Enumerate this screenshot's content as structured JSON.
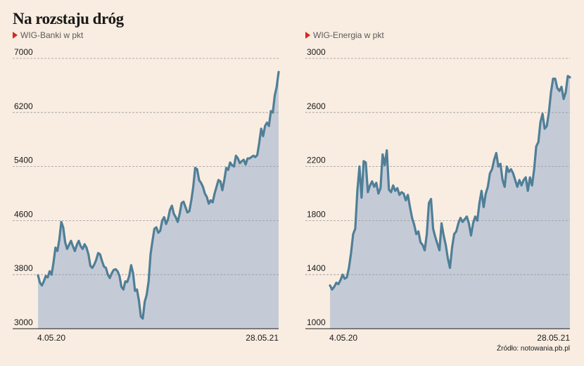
{
  "title": "Na rozstaju dróg",
  "source": "Źródło: notowania.pb.pl",
  "colors": {
    "line": "#4f7f98",
    "fill": "#c5cbd6",
    "grid": "#9a9a9a",
    "marker": "#d9261c"
  },
  "chart_data": [
    {
      "type": "area",
      "series_label": "WIG-Banki w pkt",
      "ylim": [
        3000,
        7000
      ],
      "yticks": [
        3000,
        3800,
        4600,
        5400,
        6200,
        7000
      ],
      "ytick_labels": [
        "3000",
        "3800",
        "4600",
        "5400",
        "6200",
        "7000"
      ],
      "xtick_labels": [
        "4.05.20",
        "28.05.21"
      ],
      "grid": true,
      "values": [
        3790,
        3680,
        3640,
        3700,
        3780,
        3760,
        3850,
        3800,
        3980,
        4200,
        4150,
        4320,
        4580,
        4500,
        4280,
        4180,
        4240,
        4300,
        4220,
        4150,
        4240,
        4300,
        4220,
        4180,
        4250,
        4200,
        4100,
        3930,
        3900,
        3950,
        4020,
        4120,
        4100,
        4000,
        3920,
        3900,
        3800,
        3750,
        3820,
        3870,
        3880,
        3850,
        3780,
        3620,
        3580,
        3700,
        3690,
        3780,
        3940,
        3820,
        3560,
        3580,
        3420,
        3180,
        3150,
        3400,
        3500,
        3700,
        4100,
        4300,
        4480,
        4500,
        4420,
        4450,
        4600,
        4650,
        4550,
        4620,
        4760,
        4820,
        4700,
        4650,
        4580,
        4700,
        4860,
        4880,
        4800,
        4720,
        4740,
        4900,
        5100,
        5380,
        5360,
        5200,
        5160,
        5100,
        5000,
        4950,
        4850,
        4900,
        4870,
        5000,
        5100,
        5200,
        5180,
        5050,
        5200,
        5380,
        5350,
        5460,
        5420,
        5400,
        5560,
        5520,
        5450,
        5480,
        5500,
        5430,
        5520,
        5520,
        5540,
        5560,
        5540,
        5570,
        5750,
        5960,
        5850,
        6000,
        6050,
        6000,
        6220,
        6200,
        6450,
        6580,
        6800
      ]
    },
    {
      "type": "area",
      "series_label": "WIG-Energia w pkt",
      "ylim": [
        1000,
        3000
      ],
      "yticks": [
        1000,
        1400,
        1800,
        2200,
        2600,
        3000
      ],
      "ytick_labels": [
        "1000",
        "1400",
        "1800",
        "2200",
        "2600",
        "3000"
      ],
      "xtick_labels": [
        "4.05.20",
        "28.05.21"
      ],
      "grid": true,
      "values": [
        1320,
        1290,
        1310,
        1340,
        1330,
        1360,
        1400,
        1370,
        1380,
        1450,
        1560,
        1700,
        1740,
        2020,
        2200,
        1970,
        2240,
        2230,
        2010,
        2060,
        2090,
        2050,
        2080,
        2000,
        2040,
        2290,
        2210,
        2320,
        2030,
        2010,
        2060,
        2020,
        2040,
        1990,
        2010,
        2000,
        1950,
        1990,
        1900,
        1820,
        1770,
        1700,
        1720,
        1640,
        1620,
        1580,
        1700,
        1930,
        1960,
        1740,
        1680,
        1630,
        1580,
        1780,
        1690,
        1620,
        1520,
        1450,
        1600,
        1700,
        1720,
        1780,
        1820,
        1790,
        1810,
        1830,
        1780,
        1690,
        1780,
        1830,
        1800,
        1930,
        2020,
        1900,
        2000,
        2050,
        2150,
        2180,
        2250,
        2300,
        2200,
        2220,
        2100,
        2050,
        2200,
        2160,
        2180,
        2150,
        2100,
        2050,
        2100,
        2060,
        2100,
        2120,
        2020,
        2120,
        2060,
        2180,
        2350,
        2380,
        2530,
        2590,
        2480,
        2500,
        2600,
        2750,
        2850,
        2850,
        2780,
        2760,
        2790,
        2700,
        2750,
        2870,
        2860
      ]
    }
  ]
}
